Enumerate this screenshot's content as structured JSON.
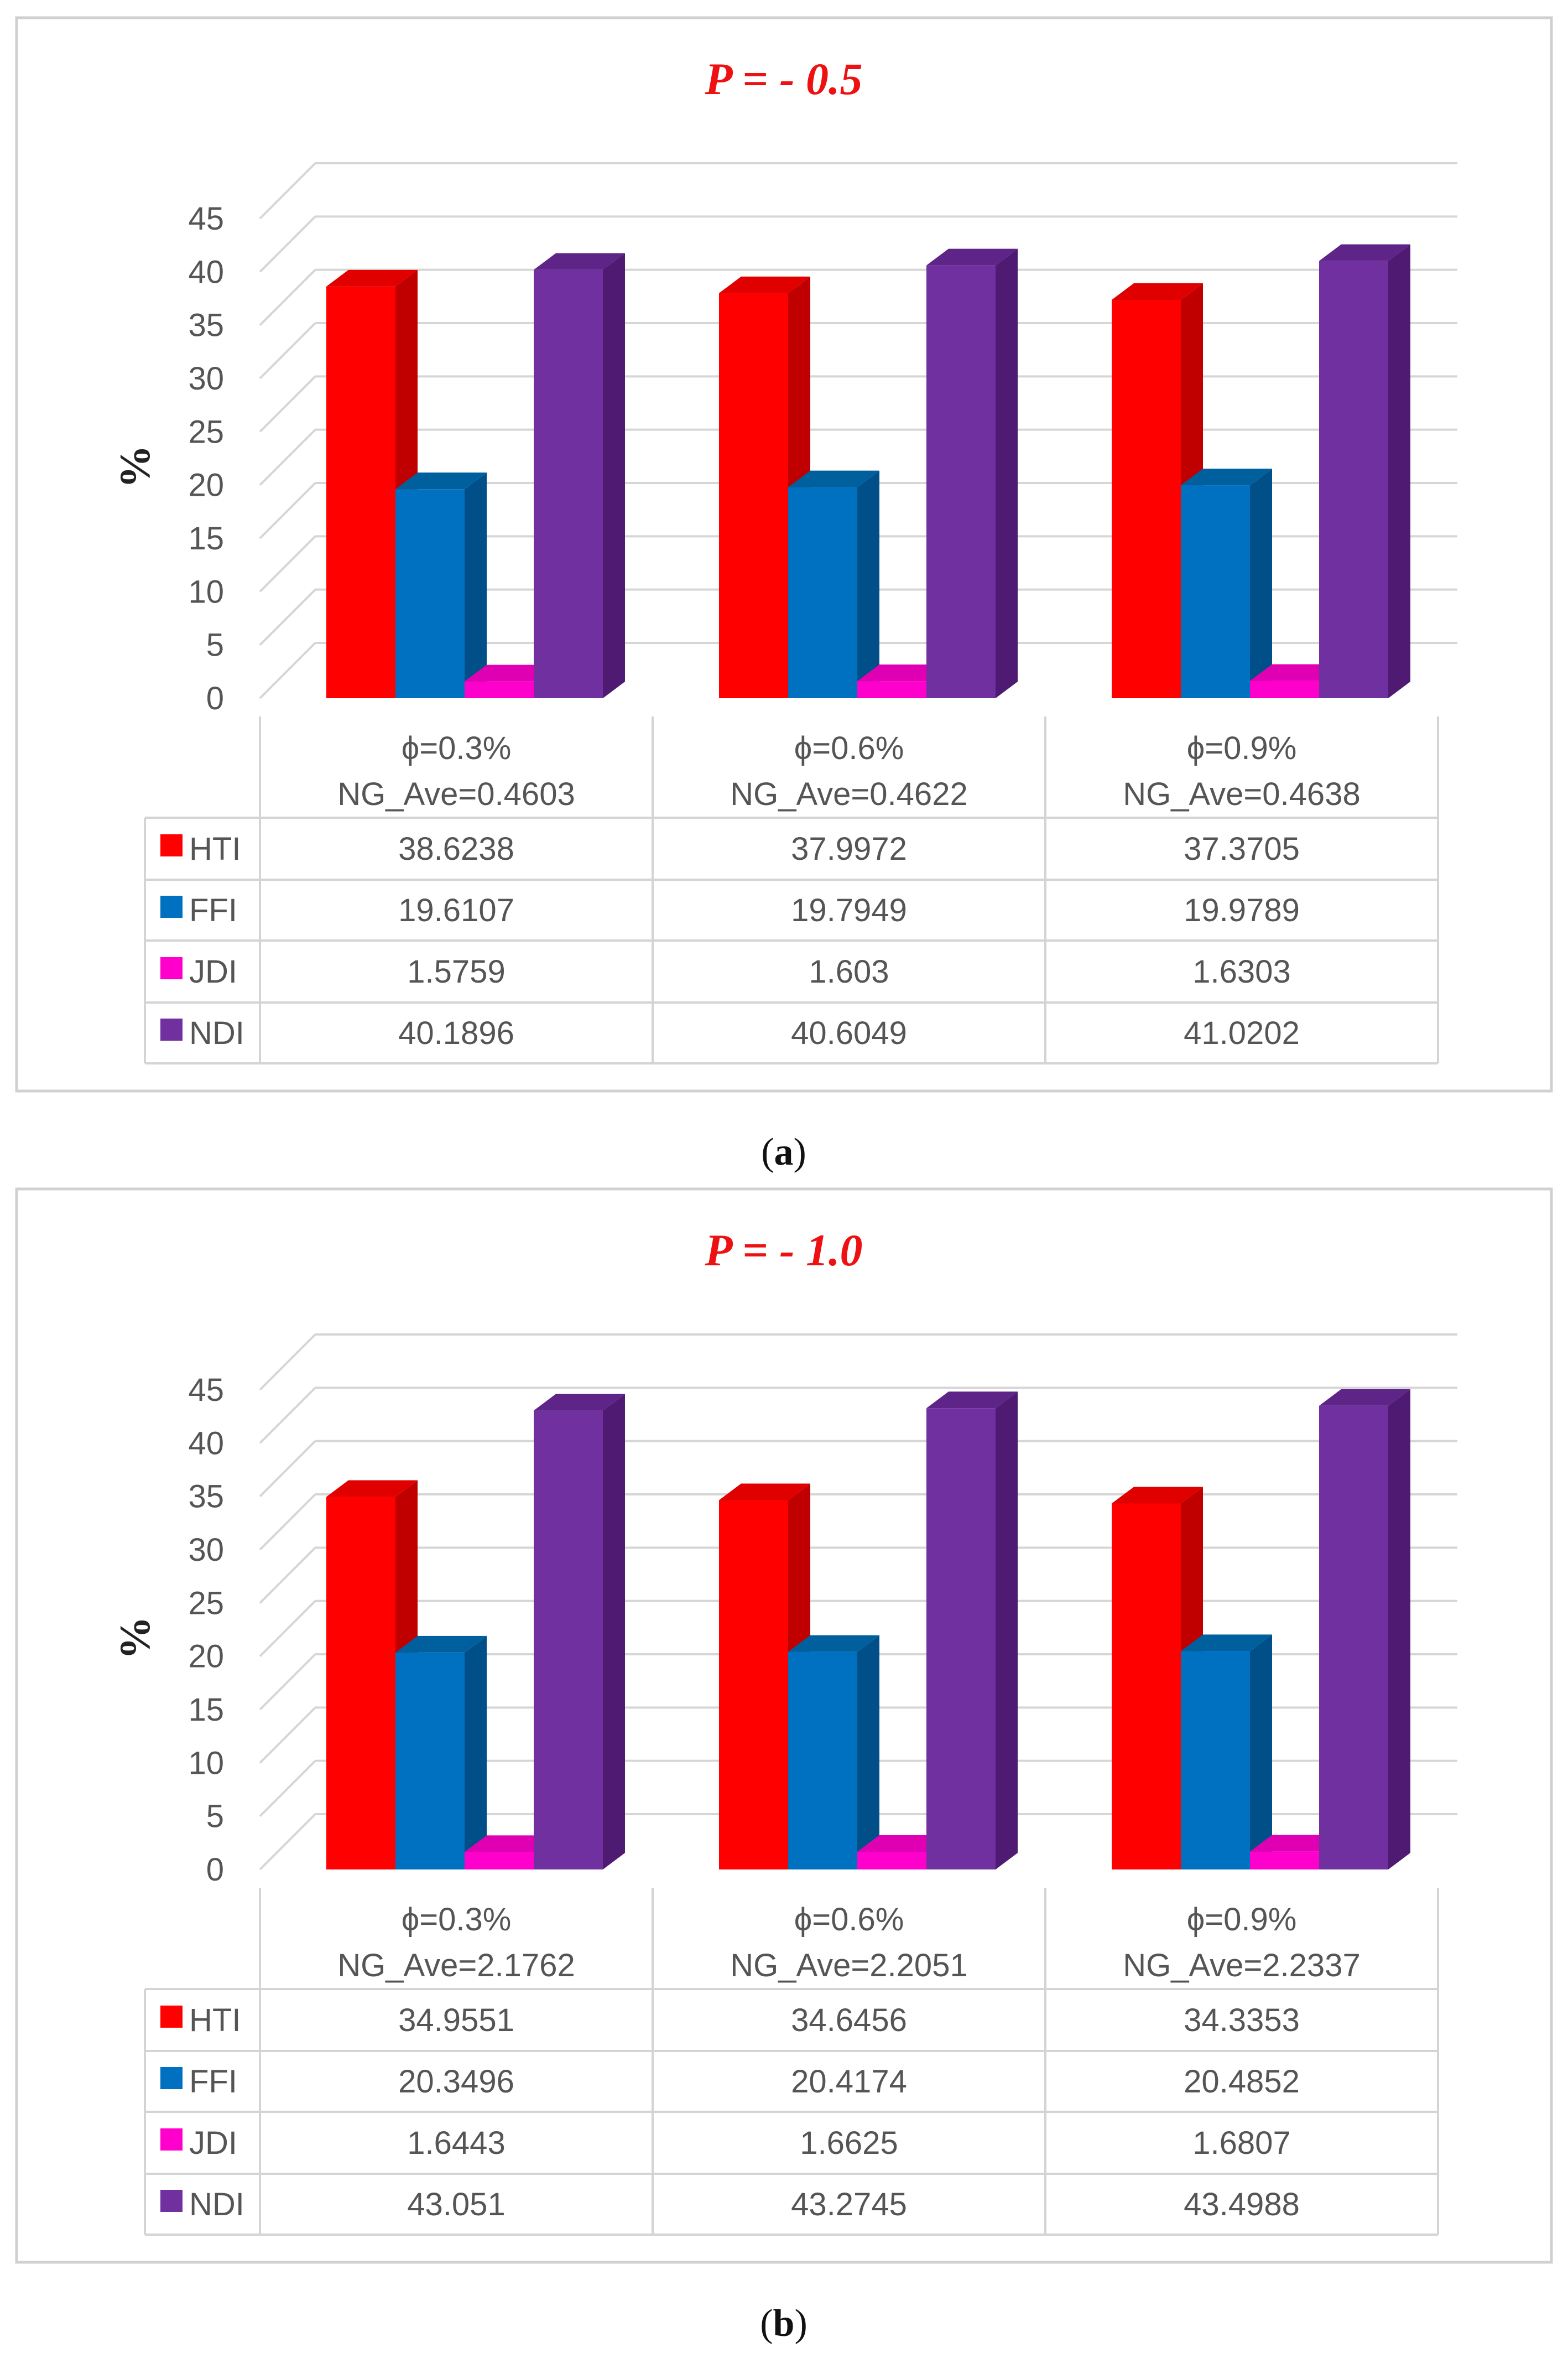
{
  "chart_data": [
    {
      "type": "bar",
      "title": "P = - 0.5",
      "ylabel": "%",
      "xlabel": "",
      "ylim": [
        0,
        45
      ],
      "yticks": [
        0,
        5,
        10,
        15,
        20,
        25,
        30,
        35,
        40,
        45
      ],
      "categories": [
        {
          "line1": "ϕ=0.3%",
          "line2": "NG_Ave=0.4603"
        },
        {
          "line1": "ϕ=0.6%",
          "line2": "NG_Ave=0.4622"
        },
        {
          "line1": "ϕ=0.9%",
          "line2": "NG_Ave=0.4638"
        }
      ],
      "series": [
        {
          "name": "HTI",
          "color": "#ff0000",
          "side": "#c00000",
          "top": "#e00000",
          "values": [
            38.6238,
            37.9972,
            37.3705
          ],
          "labels": [
            "38.6238",
            "37.9972",
            "37.3705"
          ]
        },
        {
          "name": "FFI",
          "color": "#0070c0",
          "side": "#004f88",
          "top": "#00609e",
          "values": [
            19.6107,
            19.7949,
            19.9789
          ],
          "labels": [
            "19.6107",
            "19.7949",
            "19.9789"
          ]
        },
        {
          "name": "JDI",
          "color": "#ff00cc",
          "side": "#c0009a",
          "top": "#e000b4",
          "values": [
            1.5759,
            1.603,
            1.6303
          ],
          "labels": [
            "1.5759",
            "1.603",
            "1.6303"
          ]
        },
        {
          "name": "NDI",
          "color": "#7030a0",
          "side": "#4e1a72",
          "top": "#5e2488",
          "values": [
            40.1896,
            40.6049,
            41.0202
          ],
          "labels": [
            "40.1896",
            "40.6049",
            "41.0202"
          ]
        }
      ],
      "caption_open": "(",
      "caption_letter": "a",
      "caption_close": ")"
    },
    {
      "type": "bar",
      "title": "P = - 1.0",
      "ylabel": "%",
      "xlabel": "",
      "ylim": [
        0,
        45
      ],
      "yticks": [
        0,
        5,
        10,
        15,
        20,
        25,
        30,
        35,
        40,
        45
      ],
      "categories": [
        {
          "line1": "ϕ=0.3%",
          "line2": "NG_Ave=2.1762"
        },
        {
          "line1": "ϕ=0.6%",
          "line2": "NG_Ave=2.2051"
        },
        {
          "line1": "ϕ=0.9%",
          "line2": "NG_Ave=2.2337"
        }
      ],
      "series": [
        {
          "name": "HTI",
          "color": "#ff0000",
          "side": "#c00000",
          "top": "#e00000",
          "values": [
            34.9551,
            34.6456,
            34.3353
          ],
          "labels": [
            "34.9551",
            "34.6456",
            "34.3353"
          ]
        },
        {
          "name": "FFI",
          "color": "#0070c0",
          "side": "#004f88",
          "top": "#00609e",
          "values": [
            20.3496,
            20.4174,
            20.4852
          ],
          "labels": [
            "20.3496",
            "20.4174",
            "20.4852"
          ]
        },
        {
          "name": "JDI",
          "color": "#ff00cc",
          "side": "#c0009a",
          "top": "#e000b4",
          "values": [
            1.6443,
            1.6625,
            1.6807
          ],
          "labels": [
            "1.6443",
            "1.6625",
            "1.6807"
          ]
        },
        {
          "name": "NDI",
          "color": "#7030a0",
          "side": "#4e1a72",
          "top": "#5e2488",
          "values": [
            43.051,
            43.2745,
            43.4988
          ],
          "labels": [
            "43.051",
            "43.2745",
            "43.4988"
          ]
        }
      ],
      "caption_open": "(",
      "caption_letter": "b",
      "caption_close": ")"
    }
  ]
}
